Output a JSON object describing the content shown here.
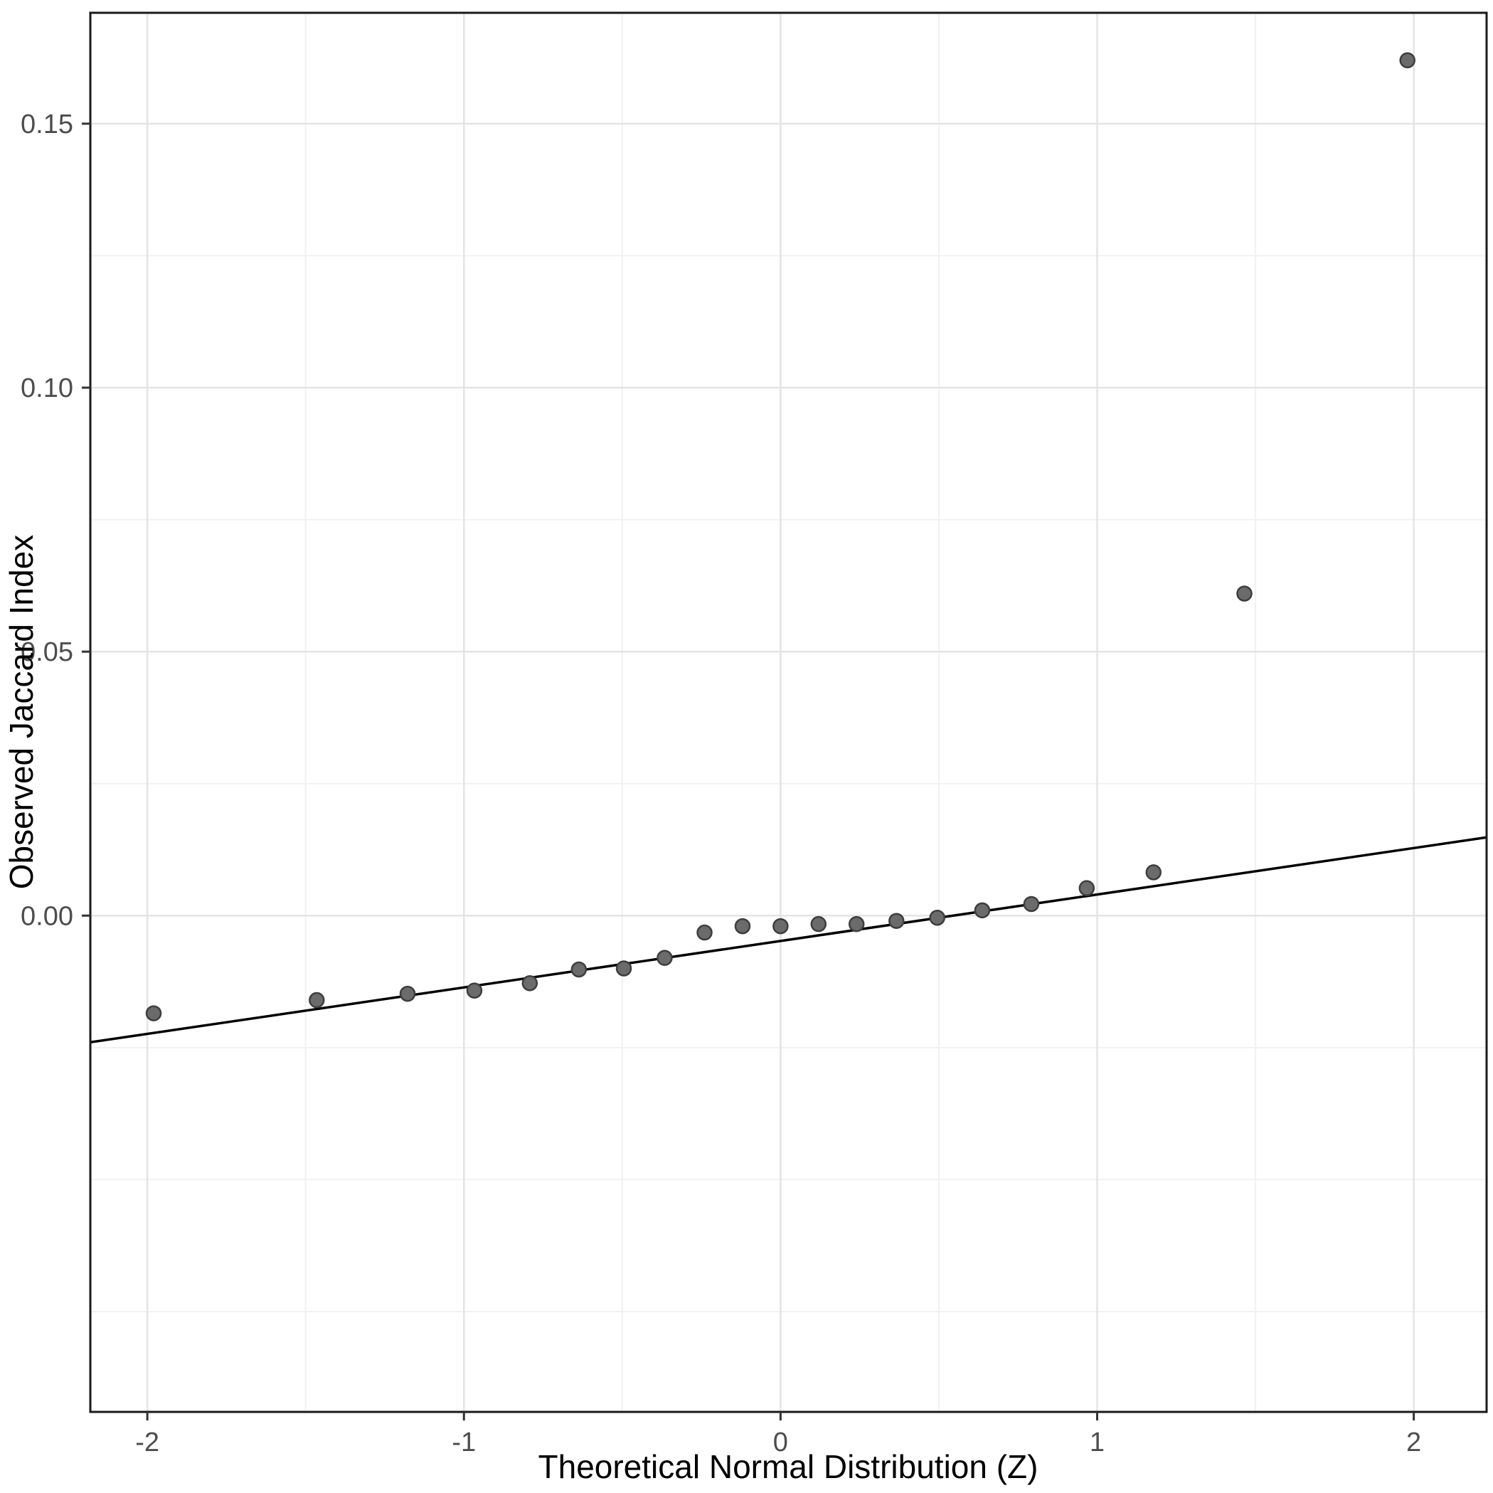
{
  "chart_data": {
    "type": "scatter",
    "subtype": "qq-plot",
    "title": "",
    "xlabel": "Theoretical Normal Distribution (Z)",
    "ylabel": "Observed Jaccard Index",
    "xlim": [
      -2.18,
      2.23
    ],
    "ylim": [
      -0.094,
      0.171
    ],
    "x_major_ticks": [
      -2,
      -1,
      0,
      1,
      2
    ],
    "x_tick_labels": [
      "-2",
      "-1",
      "0",
      "1",
      "2"
    ],
    "x_minor_ticks": [
      -1.5,
      -0.5,
      0.5,
      1.5
    ],
    "y_major_ticks": [
      0.0,
      0.05,
      0.1,
      0.15
    ],
    "y_tick_labels": [
      "0.00",
      "0.05",
      "0.10",
      "0.15"
    ],
    "y_minor_ticks": [
      -0.075,
      -0.05,
      -0.025,
      0.025,
      0.075,
      0.125
    ],
    "grid": "major+minor",
    "legend": "none",
    "points": [
      [
        -1.98,
        -0.0185
      ],
      [
        -1.465,
        -0.016
      ],
      [
        -1.178,
        -0.0148
      ],
      [
        -0.967,
        -0.0142
      ],
      [
        -0.792,
        -0.0128
      ],
      [
        -0.637,
        -0.0102
      ],
      [
        -0.495,
        -0.01
      ],
      [
        -0.366,
        -0.008
      ],
      [
        -0.24,
        -0.0032
      ],
      [
        -0.12,
        -0.002
      ],
      [
        0.0,
        -0.002
      ],
      [
        0.12,
        -0.0016
      ],
      [
        0.24,
        -0.0016
      ],
      [
        0.366,
        -0.001
      ],
      [
        0.495,
        -0.0004
      ],
      [
        0.637,
        0.001
      ],
      [
        0.792,
        0.0022
      ],
      [
        0.967,
        0.0052
      ],
      [
        1.178,
        0.0082
      ],
      [
        1.465,
        0.061
      ],
      [
        1.98,
        0.162
      ]
    ],
    "reference_line": {
      "slope": 0.0088,
      "intercept": -0.0048,
      "x_start": -2.18,
      "x_end": 2.23
    }
  },
  "style": {
    "background": "#FFFFFF",
    "panel_background": "#FFFFFF",
    "panel_border": "#1A1A1A",
    "grid_major": "#E4E4E4",
    "grid_minor": "#F1F1F1",
    "point_fill": "#6B6B6B",
    "point_stroke": "#3E3E3E",
    "line_color": "#000000",
    "tick_color": "#333333",
    "tick_label_color": "#4D4D4D",
    "axis_title_color": "#000000"
  }
}
